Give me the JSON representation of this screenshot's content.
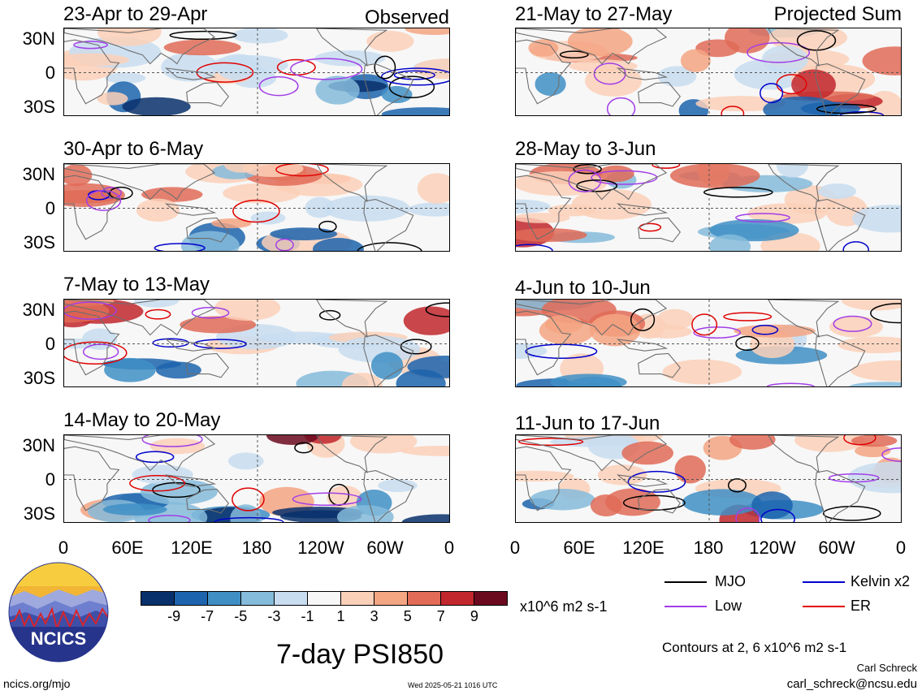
{
  "panels_left": [
    {
      "title": "23-Apr to 29-Apr",
      "tag": "Observed"
    },
    {
      "title": "30-Apr to 6-May",
      "tag": ""
    },
    {
      "title": "7-May to 13-May",
      "tag": ""
    },
    {
      "title": "14-May to 20-May",
      "tag": ""
    }
  ],
  "panels_right": [
    {
      "title": "21-May to 27-May",
      "tag": "Projected Sum"
    },
    {
      "title": "28-May to 3-Jun",
      "tag": ""
    },
    {
      "title": "4-Jun to 10-Jun",
      "tag": ""
    },
    {
      "title": "11-Jun to 17-Jun",
      "tag": ""
    }
  ],
  "lat_labels": [
    "30N",
    "0",
    "30S"
  ],
  "lon_labels": [
    "0",
    "60E",
    "120E",
    "180",
    "120W",
    "60W",
    "0"
  ],
  "colorbar": {
    "ticks": [
      "-9",
      "-7",
      "-5",
      "-3",
      "-1",
      "1",
      "3",
      "5",
      "7",
      "9"
    ],
    "colors": [
      "#08306b",
      "#1c64ad",
      "#3f8fc5",
      "#85bbdb",
      "#c8ddf0",
      "#f7f7f7",
      "#fbd0b9",
      "#f4a582",
      "#e16b57",
      "#c1272d",
      "#6b0a1f"
    ],
    "units": "x10^6 m2 s-1"
  },
  "main_title": "7-day PSI850",
  "legend": [
    {
      "label": "MJO",
      "color": "#000000"
    },
    {
      "label": "Kelvin x2",
      "color": "#0000cc"
    },
    {
      "label": "Low",
      "color": "#a23ee8"
    },
    {
      "label": "ER",
      "color": "#e00000"
    }
  ],
  "contours_note": "Contours at 2, 6 x10^6 m2 s-1",
  "author": "Carl Schreck",
  "email": "carl_schreck@ncsu.edu",
  "site": "ncics.org/mjo",
  "timestamp": "Wed 2025-05-21 1016 UTC",
  "logo_text": "NCICS"
}
